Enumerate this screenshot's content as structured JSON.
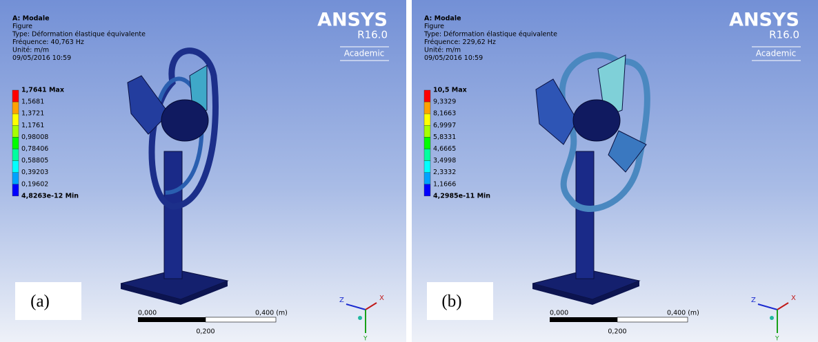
{
  "panels": [
    {
      "header": [
        "A: Modale",
        "Figure",
        "Type: Déformation élastique équivalente",
        "Fréquence: 40,763 Hz",
        "Unité: m/m",
        "09/05/2016 10:59"
      ],
      "legend": [
        "1,7641 Max",
        "1,5681",
        "1,3721",
        "1,1761",
        "0,98008",
        "0,78406",
        "0,58805",
        "0,39203",
        "0,19602",
        "4,8263e-12 Min"
      ],
      "logo": {
        "name": "ANSYS",
        "version": "R16.0",
        "edition": "Academic"
      },
      "scale": {
        "start": "0,000",
        "end": "0,400 (m)",
        "mid": "0,200"
      },
      "axes": {
        "x": "X",
        "y": "Y",
        "z": "Z"
      },
      "label": "(a)"
    },
    {
      "header": [
        "A: Modale",
        "Figure",
        "Type: Déformation élastique équivalente",
        "Fréquence: 229,62 Hz",
        "Unité: m/m",
        "09/05/2016 10:59"
      ],
      "legend": [
        "10,5 Max",
        "9,3329",
        "8,1663",
        "6,9997",
        "5,8331",
        "4,6665",
        "3,4998",
        "2,3332",
        "1,1666",
        "4,2985e-11 Min"
      ],
      "logo": {
        "name": "ANSYS",
        "version": "R16.0",
        "edition": "Academic"
      },
      "scale": {
        "start": "0,000",
        "end": "0,400 (m)",
        "mid": "0,200"
      },
      "axes": {
        "x": "X",
        "y": "Y",
        "z": "Z"
      },
      "label": "(b)"
    }
  ],
  "legend_colors": [
    "#ff0000",
    "#ffa200",
    "#ffff00",
    "#a6ff00",
    "#00ff00",
    "#00ffa0",
    "#00ffff",
    "#00a2ff",
    "#0000ff"
  ]
}
